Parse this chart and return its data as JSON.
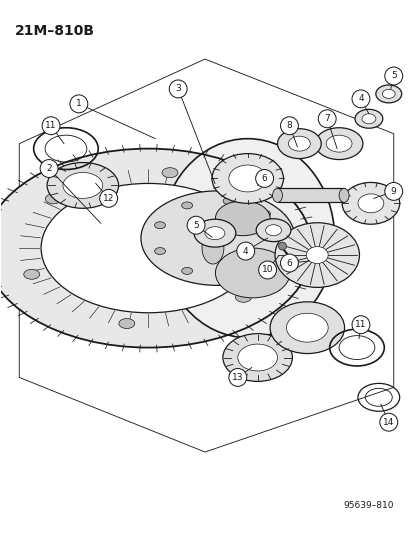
{
  "title": "21M–810B",
  "footer": "95639–810",
  "bg_color": "#ffffff",
  "line_color": "#1a1a1a",
  "title_fontsize": 10,
  "footer_fontsize": 7,
  "label_fontsize": 7,
  "lw": 0.9
}
